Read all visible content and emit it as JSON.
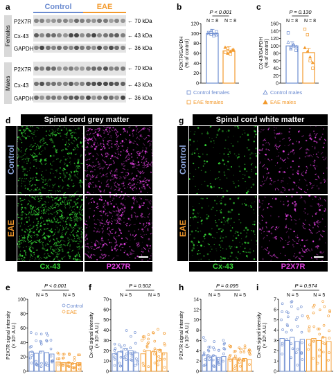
{
  "panel_labels": {
    "a": "a",
    "b": "b",
    "c": "c",
    "d": "d",
    "e": "e",
    "f": "f",
    "g": "g",
    "h": "h",
    "i": "i"
  },
  "western": {
    "group_control": "Control",
    "group_eae": "EAE",
    "sex_female": "Females",
    "sex_male": "Males",
    "female_rows": [
      {
        "label": "P2X7R",
        "kda": "70 kDa"
      },
      {
        "label": "Cx-43",
        "kda": "43 kDa"
      },
      {
        "label": "GAPDH",
        "kda": "36 kDa"
      }
    ],
    "male_rows": [
      {
        "label": "P2X7R",
        "kda": "70 kDa"
      },
      {
        "label": "Cx-43",
        "kda": "43 kDa"
      },
      {
        "label": "GAPDH",
        "kda": "36 kDa"
      }
    ]
  },
  "colors": {
    "control": "#6b8bd0",
    "eae": "#f39a2d",
    "cx43": "#35d435",
    "p2x7r": "#e040e0"
  },
  "micro_d": {
    "title": "Spinal cord grey matter",
    "row1": "Control",
    "row2": "EAE",
    "ch1": "Cx-43",
    "ch2": "P2X7R"
  },
  "micro_g": {
    "title": "Spinal cord white matter",
    "row1": "Control",
    "row2": "EAE",
    "ch1": "Cx-43",
    "ch2": "P2X7R"
  },
  "chart_data": [
    {
      "panel": "b",
      "type": "bar",
      "ylabel": "P2X7R/GAPDH (% of control)",
      "ylim": [
        0,
        120
      ],
      "yticks": [
        0,
        20,
        40,
        60,
        80,
        100,
        120
      ],
      "pvalue": "P < 0.001",
      "n_labels": [
        "N = 8",
        "N = 8"
      ],
      "series": [
        {
          "name": "Control",
          "values": [
            100
          ]
        },
        {
          "name": "EAE",
          "values": [
            65
          ]
        }
      ],
      "points": {
        "control": [
          102,
          98,
          95,
          104,
          100,
          106,
          99,
          97
        ],
        "eae": [
          62,
          70,
          58,
          66,
          72,
          60,
          64,
          68
        ]
      },
      "legend": [
        "Control females",
        "EAE females"
      ]
    },
    {
      "panel": "c",
      "type": "bar",
      "ylabel": "CX-43/GAPDH (% of control)",
      "ylim": [
        0,
        160
      ],
      "yticks": [
        0,
        20,
        40,
        60,
        80,
        100,
        120,
        140,
        160
      ],
      "pvalue": "P = 0.130",
      "n_labels": [
        "N = 8",
        "N = 8"
      ],
      "series": [
        {
          "name": "Control",
          "values": [
            100
          ]
        },
        {
          "name": "EAE",
          "values": [
            82
          ]
        }
      ],
      "points": {
        "control": [
          135,
          95,
          100,
          88,
          110,
          92,
          104,
          98
        ],
        "eae": [
          145,
          130,
          60,
          40,
          95,
          85,
          70,
          55
        ]
      },
      "legend": [
        "Control males",
        "EAE males"
      ]
    },
    {
      "panel": "e",
      "type": "bar",
      "ylabel": "P2X7R signal intensity (× 10⁵ A.U.)",
      "ylim": [
        0,
        100
      ],
      "yticks": [
        0,
        20,
        40,
        60,
        80,
        100
      ],
      "pvalue": "P < 0.001",
      "n_labels": [
        "N = 5",
        "N = 5"
      ],
      "legend": [
        "Control",
        "EAE"
      ],
      "series": [
        {
          "name": "Control",
          "values": [
            27,
            25,
            28,
            26,
            24
          ]
        },
        {
          "name": "EAE",
          "values": [
            13,
            12,
            12,
            11,
            12
          ]
        }
      ]
    },
    {
      "panel": "f",
      "type": "bar",
      "ylabel": "Cx-43 signal intensity (× 10⁵ A.U.)",
      "ylim": [
        0,
        70
      ],
      "yticks": [
        0,
        10,
        20,
        30,
        40,
        50,
        60,
        70
      ],
      "pvalue": "P = 0.502",
      "n_labels": [
        "N = 5",
        "N = 5"
      ],
      "series": [
        {
          "name": "Control",
          "values": [
            17,
            19,
            22,
            20,
            18
          ]
        },
        {
          "name": "EAE",
          "values": [
            17,
            20,
            19,
            21,
            18
          ]
        }
      ]
    },
    {
      "panel": "h",
      "type": "bar",
      "ylabel": "P2X7R signal intensity (× 10⁵ A.U.)",
      "ylim": [
        0,
        14
      ],
      "yticks": [
        0,
        2,
        4,
        6,
        8,
        10,
        12,
        14
      ],
      "pvalue": "P = 0.095",
      "n_labels": [
        "N = 5",
        "N = 5"
      ],
      "series": [
        {
          "name": "Control",
          "values": [
            3.2,
            2.8,
            3.0,
            2.7,
            2.9
          ]
        },
        {
          "name": "EAE",
          "values": [
            2.4,
            2.6,
            2.2,
            2.5,
            2.3
          ]
        }
      ]
    },
    {
      "panel": "i",
      "type": "bar",
      "ylabel": "Cx-43 signal intensity (× 10⁵ A.U.)",
      "ylim": [
        0,
        7
      ],
      "yticks": [
        0,
        1,
        2,
        3,
        4,
        5,
        6,
        7
      ],
      "pvalue": "P = 0.974",
      "n_labels": [
        "N = 5",
        "N = 5"
      ],
      "series": [
        {
          "name": "Control",
          "values": [
            3.2,
            3.0,
            3.3,
            2.9,
            3.1
          ]
        },
        {
          "name": "EAE",
          "values": [
            3.1,
            3.2,
            3.0,
            3.3,
            2.9
          ]
        }
      ]
    }
  ]
}
